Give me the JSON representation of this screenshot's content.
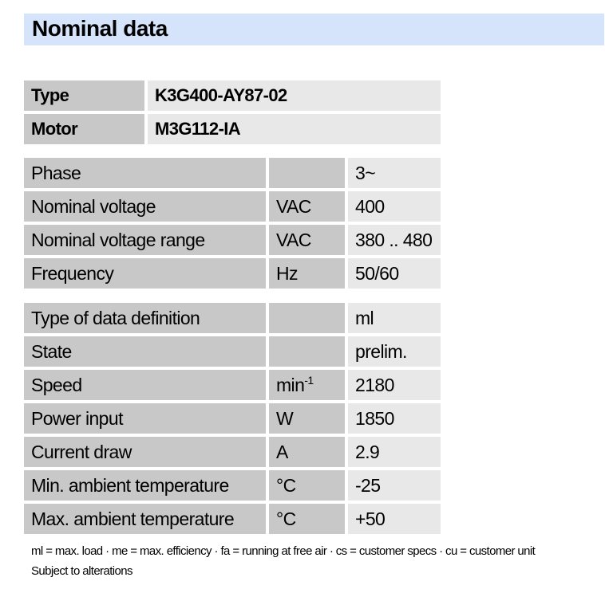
{
  "title": "Nominal data",
  "identity": [
    {
      "label": "Type",
      "value": "K3G400-AY87-02"
    },
    {
      "label": "Motor",
      "value": "M3G112-IA"
    }
  ],
  "electrical": [
    {
      "label": "Phase",
      "unit": "",
      "value": "3~"
    },
    {
      "label": "Nominal voltage",
      "unit": "VAC",
      "value": "400"
    },
    {
      "label": "Nominal voltage range",
      "unit": "VAC",
      "value": "380 .. 480"
    },
    {
      "label": "Frequency",
      "unit": "Hz",
      "value": "50/60"
    }
  ],
  "operating": [
    {
      "label": "Type of data definition",
      "unit": "",
      "value": "ml"
    },
    {
      "label": "State",
      "unit": "",
      "value": "prelim."
    },
    {
      "label": "Speed",
      "unit": "min",
      "unit_sup": "-1",
      "value": "2180"
    },
    {
      "label": "Power input",
      "unit": "W",
      "value": "1850"
    },
    {
      "label": "Current draw",
      "unit": "A",
      "value": "2.9"
    },
    {
      "label": "Min. ambient temperature",
      "unit": "°C",
      "value": "-25"
    },
    {
      "label": "Max. ambient temperature",
      "unit": "°C",
      "value": "+50"
    }
  ],
  "footer": {
    "legend": "ml = max. load · me = max. efficiency · fa = running at free air · cs = customer specs · cu = customer unit",
    "note": "Subject to alterations"
  },
  "colors": {
    "header_bg": "#d6e4fb",
    "label_bg": "#c8c8c8",
    "value_bg": "#e8e8e8"
  }
}
